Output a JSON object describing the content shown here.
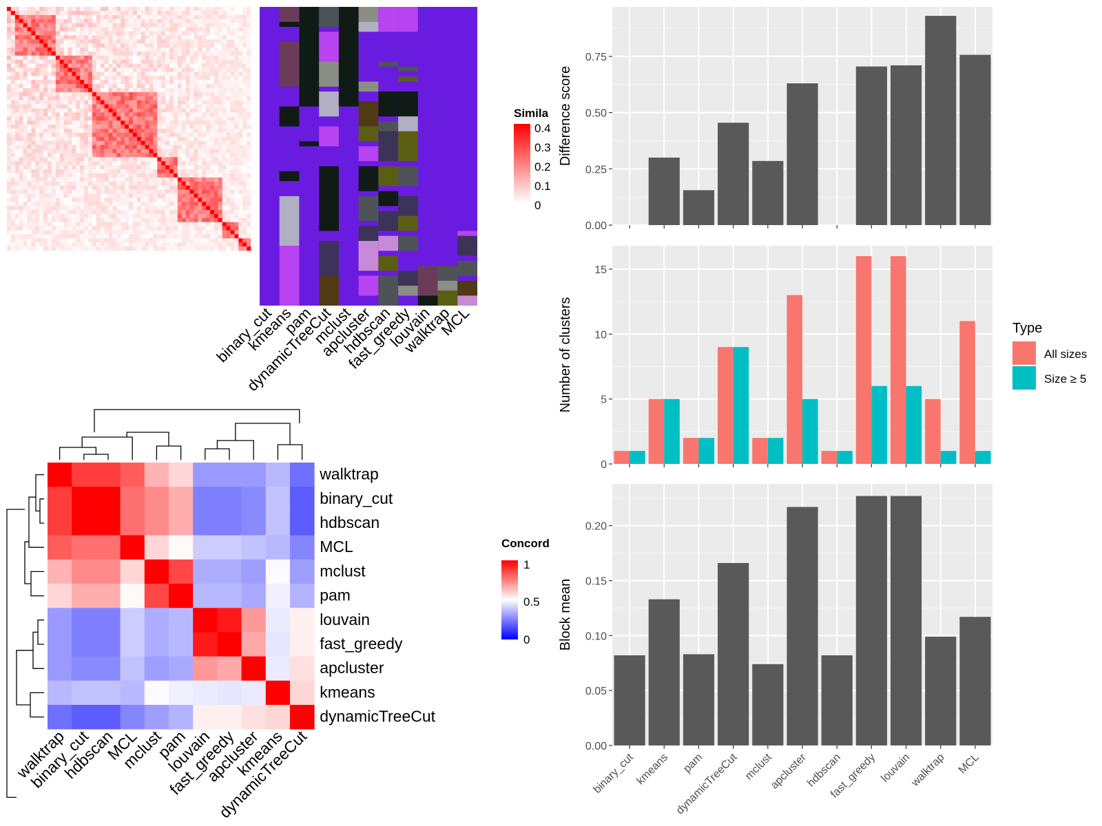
{
  "methods": [
    "binary_cut",
    "kmeans",
    "pam",
    "dynamicTreeCut",
    "mclust",
    "apcluster",
    "hdbscan",
    "fast_greedy",
    "louvain",
    "walktrap",
    "MCL"
  ],
  "heatmap_similarity": {
    "legend_title": "Simila",
    "legend_ticks": [
      "0.4",
      "0.3",
      "0.2",
      "0.1",
      "0"
    ],
    "colors": {
      "high": "#FF0000",
      "low": "#FFFFFF"
    },
    "partition_palette": [
      "#6A1BE0",
      "#6B3C5A",
      "#0F1B14",
      "#4D5357",
      "#B843F0",
      "#8A8E84",
      "#B0AFC4",
      "#4F3A14",
      "#5A5E12",
      "#3C3358",
      "#C88AD6"
    ]
  },
  "heatmap_concordance": {
    "legend_title": "Concord",
    "legend_ticks": [
      "1",
      "0.5",
      "0"
    ],
    "colors": {
      "high": "#FF0000",
      "mid": "#FFFFFF",
      "low": "#0000FF"
    },
    "order": [
      "walktrap",
      "binary_cut",
      "hdbscan",
      "MCL",
      "mclust",
      "pam",
      "louvain",
      "fast_greedy",
      "apcluster",
      "kmeans",
      "dynamicTreeCut"
    ],
    "matrix": [
      [
        1.0,
        0.88,
        0.88,
        0.82,
        0.65,
        0.58,
        0.3,
        0.3,
        0.3,
        0.36,
        0.22
      ],
      [
        0.88,
        1.0,
        1.0,
        0.78,
        0.73,
        0.66,
        0.25,
        0.25,
        0.27,
        0.38,
        0.18
      ],
      [
        0.88,
        1.0,
        1.0,
        0.78,
        0.73,
        0.66,
        0.25,
        0.25,
        0.27,
        0.38,
        0.18
      ],
      [
        0.82,
        0.78,
        0.78,
        1.0,
        0.58,
        0.51,
        0.4,
        0.4,
        0.38,
        0.36,
        0.26
      ],
      [
        0.65,
        0.73,
        0.73,
        0.58,
        1.0,
        0.86,
        0.34,
        0.34,
        0.31,
        0.49,
        0.31
      ],
      [
        0.58,
        0.66,
        0.66,
        0.51,
        0.86,
        1.0,
        0.36,
        0.36,
        0.33,
        0.47,
        0.35
      ],
      [
        0.3,
        0.25,
        0.25,
        0.4,
        0.34,
        0.36,
        1.0,
        0.95,
        0.7,
        0.46,
        0.53
      ],
      [
        0.3,
        0.25,
        0.25,
        0.4,
        0.34,
        0.36,
        0.95,
        1.0,
        0.67,
        0.45,
        0.53
      ],
      [
        0.3,
        0.27,
        0.27,
        0.38,
        0.31,
        0.33,
        0.7,
        0.67,
        1.0,
        0.46,
        0.56
      ],
      [
        0.36,
        0.38,
        0.38,
        0.36,
        0.49,
        0.47,
        0.46,
        0.45,
        0.46,
        1.0,
        0.58
      ],
      [
        0.22,
        0.18,
        0.18,
        0.26,
        0.31,
        0.35,
        0.53,
        0.53,
        0.56,
        0.58,
        1.0
      ]
    ]
  },
  "chart_data": [
    {
      "type": "bar",
      "categories": [
        "binary_cut",
        "kmeans",
        "pam",
        "dynamicTreeCut",
        "mclust",
        "apcluster",
        "hdbscan",
        "fast_greedy",
        "louvain",
        "walktrap",
        "MCL"
      ],
      "values": [
        0,
        0.3,
        0.155,
        0.455,
        0.285,
        0.63,
        0,
        0.705,
        0.71,
        0.93,
        0.757
      ],
      "ylabel": "Difference score",
      "yticks": [
        "0.00",
        "0.25",
        "0.50",
        "0.75"
      ],
      "ylim": [
        0,
        0.97
      ],
      "grid": true,
      "bar_color": "#595959",
      "panel_color": "#EBEBEB"
    },
    {
      "type": "bar",
      "categories": [
        "binary_cut",
        "kmeans",
        "pam",
        "dynamicTreeCut",
        "mclust",
        "apcluster",
        "hdbscan",
        "fast_greedy",
        "louvain",
        "walktrap",
        "MCL"
      ],
      "series": [
        {
          "name": "All sizes",
          "color": "#F8766D",
          "values": [
            1,
            5,
            2,
            9,
            2,
            13,
            1,
            16,
            16,
            5,
            11
          ]
        },
        {
          "name": "Size ≥ 5",
          "color": "#00BFC4",
          "values": [
            1,
            5,
            2,
            9,
            2,
            5,
            1,
            6,
            6,
            1,
            1
          ]
        }
      ],
      "ylabel": "Number of clusters",
      "yticks": [
        "0",
        "5",
        "10",
        "15"
      ],
      "ylim": [
        0,
        16.8
      ],
      "legend_title": "Type",
      "legend": "right",
      "grid": true,
      "panel_color": "#EBEBEB"
    },
    {
      "type": "bar",
      "categories": [
        "binary_cut",
        "kmeans",
        "pam",
        "dynamicTreeCut",
        "mclust",
        "apcluster",
        "hdbscan",
        "fast_greedy",
        "louvain",
        "walktrap",
        "MCL"
      ],
      "values": [
        0.082,
        0.133,
        0.083,
        0.166,
        0.074,
        0.217,
        0.082,
        0.227,
        0.227,
        0.099,
        0.117
      ],
      "ylabel": "Block mean",
      "yticks": [
        "0.00",
        "0.05",
        "0.10",
        "0.15",
        "0.20"
      ],
      "ylim": [
        0,
        0.238
      ],
      "grid": true,
      "bar_color": "#595959",
      "panel_color": "#EBEBEB"
    }
  ]
}
